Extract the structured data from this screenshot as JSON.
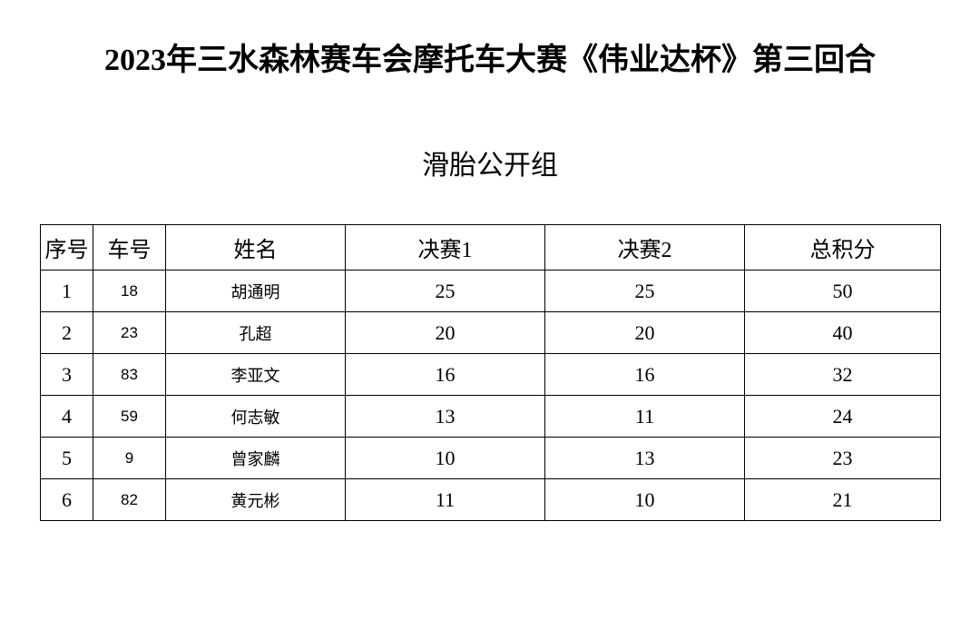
{
  "title": "2023年三水森林赛车会摩托车大赛《伟业达杯》第三回合",
  "subtitle": "滑胎公开组",
  "columns": {
    "seq": "序号",
    "car": "车号",
    "name": "姓名",
    "f1": "决赛1",
    "f2": "决赛2",
    "total": "总积分"
  },
  "rows": [
    {
      "seq": "1",
      "car": "18",
      "name": "胡通明",
      "f1": "25",
      "f2": "25",
      "total": "50"
    },
    {
      "seq": "2",
      "car": "23",
      "name": "孔超",
      "f1": "20",
      "f2": "20",
      "total": "40"
    },
    {
      "seq": "3",
      "car": "83",
      "name": "李亚文",
      "f1": "16",
      "f2": "16",
      "total": "32"
    },
    {
      "seq": "4",
      "car": "59",
      "name": "何志敏",
      "f1": "13",
      "f2": "11",
      "total": "24"
    },
    {
      "seq": "5",
      "car": "9",
      "name": "曾家麟",
      "f1": "10",
      "f2": "13",
      "total": "23"
    },
    {
      "seq": "6",
      "car": "82",
      "name": "黄元彬",
      "f1": "11",
      "f2": "10",
      "total": "21"
    }
  ]
}
